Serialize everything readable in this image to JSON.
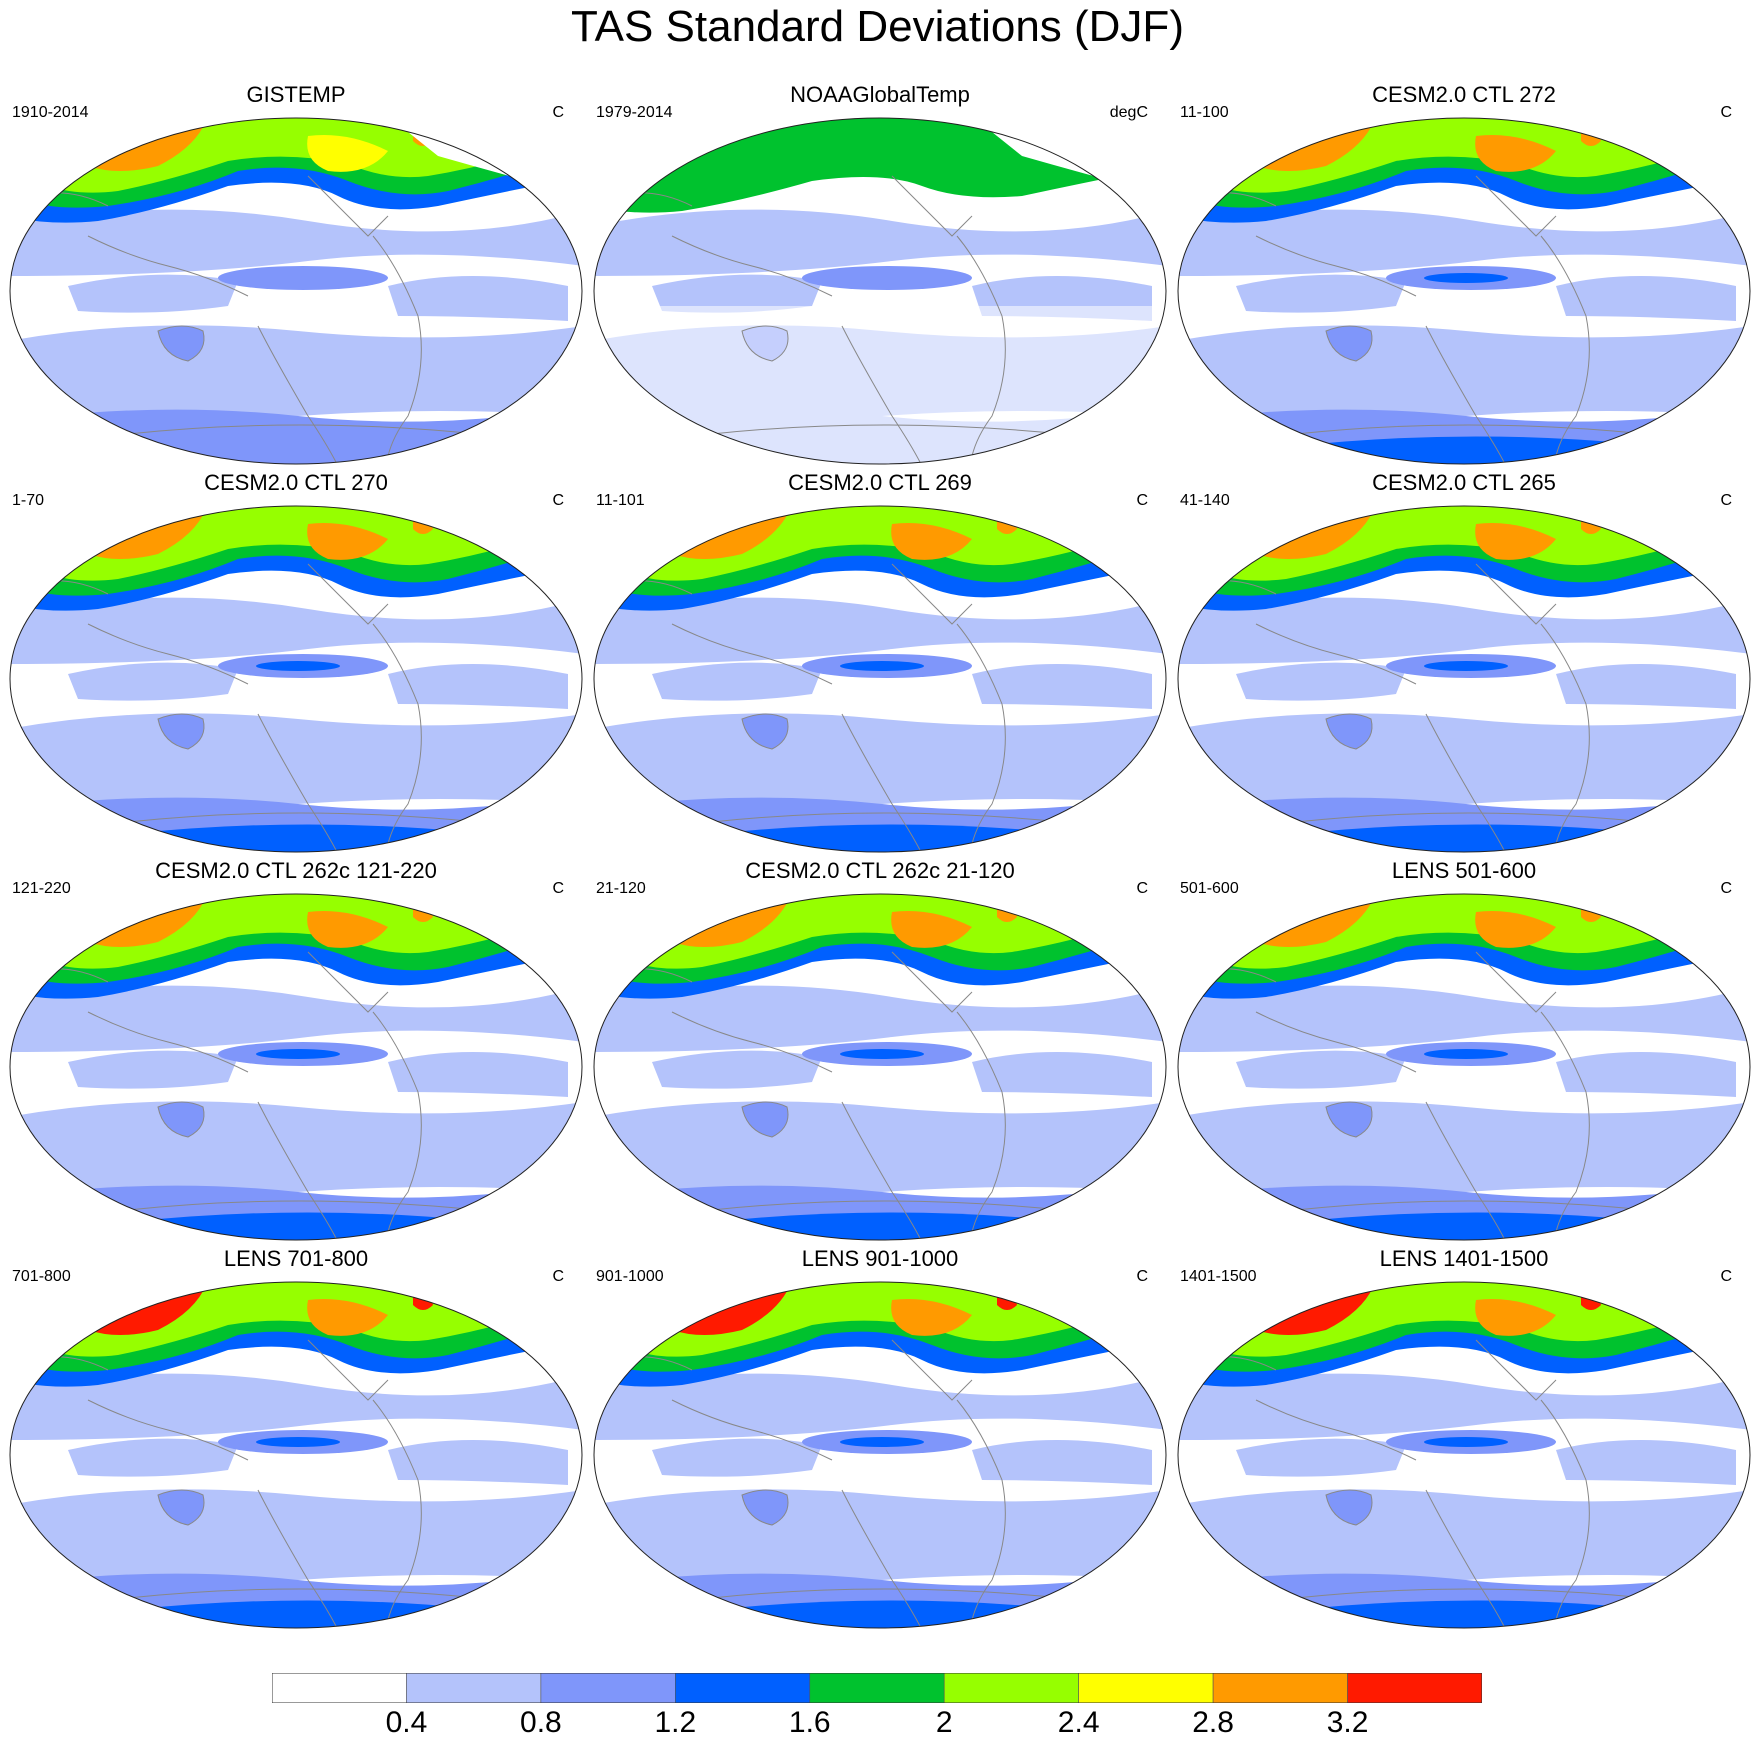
{
  "title": "TAS Standard Deviations (DJF)",
  "panels": [
    {
      "title": "GISTEMP",
      "left": "1910-2014",
      "right": "C",
      "level": 0.95,
      "land": true,
      "gaps": true
    },
    {
      "title": "NOAAGlobalTemp",
      "left": "1979-2014",
      "right": "degC",
      "level": 0.7,
      "land": false,
      "gaps": true
    },
    {
      "title": "CESM2.0 CTL 272",
      "left": "11-100",
      "right": "C",
      "level": 1.05,
      "land": true,
      "gaps": false
    },
    {
      "title": "CESM2.0 CTL 270",
      "left": "1-70",
      "right": "C",
      "level": 1.05,
      "land": true,
      "gaps": false
    },
    {
      "title": "CESM2.0 CTL 269",
      "left": "11-101",
      "right": "C",
      "level": 1.1,
      "land": true,
      "gaps": false
    },
    {
      "title": "CESM2.0 CTL 265",
      "left": "41-140",
      "right": "C",
      "level": 1.05,
      "land": true,
      "gaps": false
    },
    {
      "title": "CESM2.0 CTL 262c 121-220",
      "left": "121-220",
      "right": "C",
      "level": 1.05,
      "land": true,
      "gaps": false
    },
    {
      "title": "CESM2.0 CTL 262c 21-120",
      "left": "21-120",
      "right": "C",
      "level": 1.05,
      "land": true,
      "gaps": false
    },
    {
      "title": "LENS 501-600",
      "left": "501-600",
      "right": "C",
      "level": 1.2,
      "land": true,
      "gaps": false
    },
    {
      "title": "LENS 701-800",
      "left": "701-800",
      "right": "C",
      "level": 1.25,
      "land": true,
      "gaps": false
    },
    {
      "title": "LENS 901-1000",
      "left": "901-1000",
      "right": "C",
      "level": 1.25,
      "land": true,
      "gaps": false
    },
    {
      "title": "LENS 1401-1500",
      "left": "1401-1500",
      "right": "C",
      "level": 1.25,
      "land": true,
      "gaps": false
    }
  ],
  "colorbar": {
    "labels": [
      "0.4",
      "0.8",
      "1.2",
      "1.6",
      "2",
      "2.4",
      "2.8",
      "3.2"
    ],
    "colors": [
      "#ffffff",
      "#b4c3fb",
      "#7f96fa",
      "#0060ff",
      "#00c22e",
      "#96ff00",
      "#ffff00",
      "#ff9a00",
      "#ff1a00"
    ]
  }
}
